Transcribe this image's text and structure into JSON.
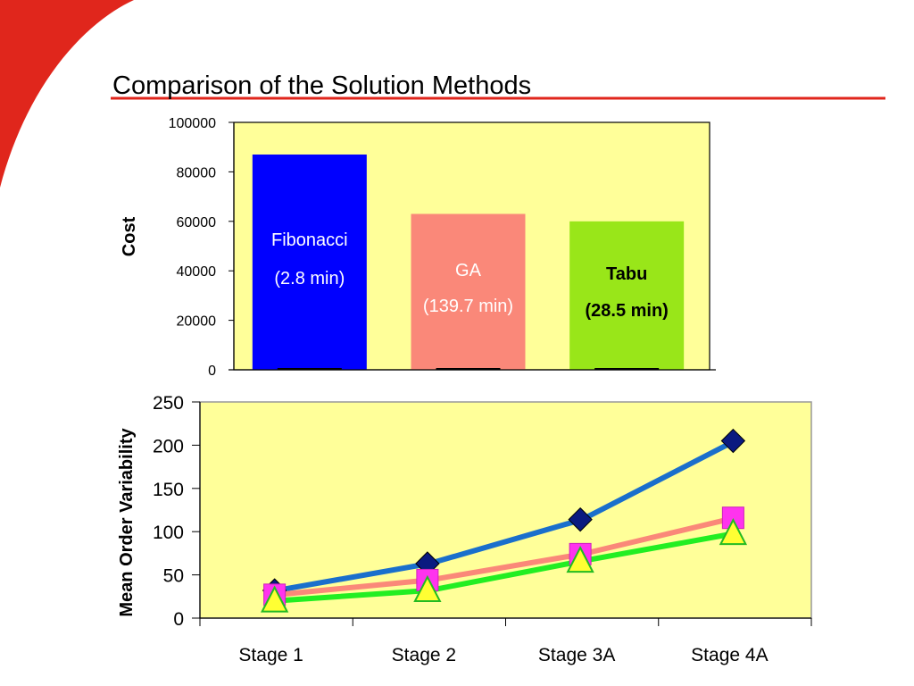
{
  "slide": {
    "title": "Comparison of the Solution Methods",
    "accent_color": "#e0261c"
  },
  "chart_data": [
    {
      "type": "bar",
      "ylabel": "Cost",
      "ylim": [
        0,
        100000
      ],
      "yticks": [
        "0",
        "20000",
        "40000",
        "60000",
        "80000",
        "100000"
      ],
      "plot_background": "#ffff99",
      "categories": [
        "Fibonacci",
        "GA",
        "Tabu"
      ],
      "values": [
        87000,
        63000,
        60000
      ],
      "bars": [
        {
          "name": "Fibonacci",
          "time": "(2.8 min)",
          "color": "#0000ff",
          "label_color": "#ffffff"
        },
        {
          "name": "GA",
          "time": "(139.7 min)",
          "color": "#fa8879",
          "label_color": "#ffffff"
        },
        {
          "name": "Tabu",
          "time": "(28.5 min)",
          "color": "#99e619",
          "label_color": "#000000"
        }
      ]
    },
    {
      "type": "line",
      "ylabel": "Mean Order Variability",
      "ylim": [
        0,
        250
      ],
      "yticks": [
        "0",
        "50",
        "100",
        "150",
        "200",
        "250"
      ],
      "plot_background": "#ffff99",
      "categories": [
        "Stage 1",
        "Stage 2",
        "Stage 3A",
        "Stage 4A"
      ],
      "series": [
        {
          "values": [
            32,
            63,
            114,
            205
          ],
          "color": "#1a6fcc",
          "marker": "diamond",
          "marker_color": "#0a1a80"
        },
        {
          "values": [
            27,
            44,
            74,
            116
          ],
          "color": "#fa8879",
          "marker": "square",
          "marker_color": "#ff33ee"
        },
        {
          "values": [
            20,
            32,
            66,
            98
          ],
          "color": "#22ee22",
          "marker": "triangle",
          "marker_color": "#ffff33"
        }
      ]
    }
  ]
}
